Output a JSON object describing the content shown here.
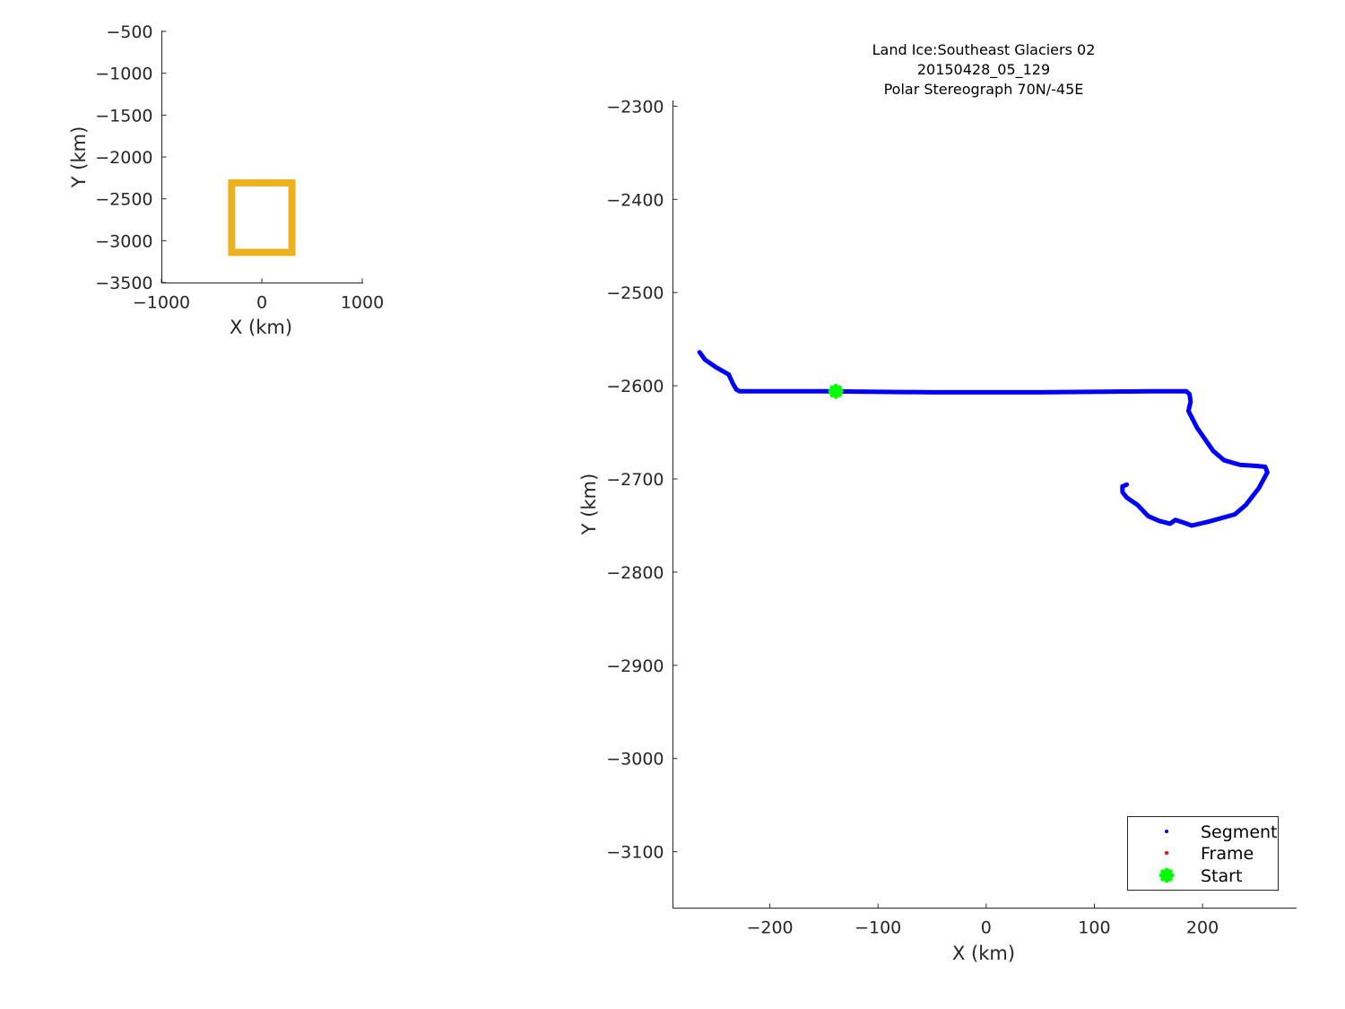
{
  "chart_data": [
    {
      "type": "line",
      "name": "overview-map",
      "xlabel": "X (km)",
      "ylabel": "Y (km)",
      "xlim": [
        -1000,
        1000
      ],
      "ylim": [
        -3500,
        -500
      ],
      "xticks": [
        -1000,
        0,
        1000
      ],
      "yticks": [
        -500,
        -1000,
        -1500,
        -2000,
        -2500,
        -3000,
        -3500
      ],
      "xtick_labels": [
        "−1000",
        "0",
        "1000"
      ],
      "ytick_labels": [
        "−500",
        "−1000",
        "−1500",
        "−2000",
        "−2500",
        "−3000",
        "−3500"
      ],
      "color": "#EDB120",
      "outline": [
        [
          -300,
          -2310
        ],
        [
          300,
          -2310
        ],
        [
          300,
          -3140
        ],
        [
          -300,
          -3140
        ]
      ],
      "grid": false
    },
    {
      "type": "line",
      "name": "flight-path",
      "title": [
        "Land Ice:Southeast  Glaciers 02",
        "20150428_05_129",
        "Polar Stereograph 70N/-45E"
      ],
      "xlabel": "X (km)",
      "ylabel": "Y (km)",
      "xlim": [
        -290,
        287
      ],
      "ylim": [
        -3160,
        -2290
      ],
      "xticks": [
        -200,
        -100,
        0,
        100,
        200
      ],
      "yticks": [
        -2300,
        -2400,
        -2500,
        -2600,
        -2700,
        -2800,
        -2900,
        -3000,
        -3100
      ],
      "xtick_labels": [
        "−200",
        "−100",
        "0",
        "100",
        "200"
      ],
      "ytick_labels": [
        "−2300",
        "−2400",
        "−2500",
        "−2600",
        "−2700",
        "−2800",
        "−2900",
        "−3000",
        "−3100"
      ],
      "grid": false,
      "legend_position": "bottom-right",
      "series": [
        {
          "name": "Segment",
          "color": "#0000FF",
          "points": [
            [
              -265,
              -2564
            ],
            [
              -260,
              -2572
            ],
            [
              -250,
              -2580
            ],
            [
              -238,
              -2588
            ],
            [
              -234,
              -2598
            ],
            [
              -231,
              -2604
            ],
            [
              -228,
              -2606
            ],
            [
              -150,
              -2606
            ],
            [
              -50,
              -2607
            ],
            [
              50,
              -2607
            ],
            [
              150,
              -2606
            ],
            [
              185,
              -2606
            ],
            [
              188,
              -2609
            ],
            [
              189,
              -2617
            ],
            [
              187,
              -2627
            ],
            [
              195,
              -2645
            ],
            [
              210,
              -2670
            ],
            [
              220,
              -2680
            ],
            [
              235,
              -2685
            ],
            [
              250,
              -2686
            ],
            [
              258,
              -2687
            ],
            [
              260,
              -2693
            ],
            [
              252,
              -2710
            ],
            [
              240,
              -2728
            ],
            [
              230,
              -2738
            ],
            [
              205,
              -2746
            ],
            [
              190,
              -2750
            ],
            [
              183,
              -2747
            ],
            [
              175,
              -2744
            ],
            [
              170,
              -2748
            ],
            [
              160,
              -2745
            ],
            [
              150,
              -2740
            ],
            [
              140,
              -2728
            ],
            [
              130,
              -2720
            ],
            [
              126,
              -2714
            ],
            [
              126,
              -2708
            ],
            [
              130,
              -2706
            ]
          ]
        },
        {
          "name": "Frame",
          "color": "#FF0000",
          "points": []
        },
        {
          "name": "Start",
          "color": "#00FF00",
          "points": [
            [
              -139,
              -2606
            ]
          ]
        }
      ]
    }
  ]
}
